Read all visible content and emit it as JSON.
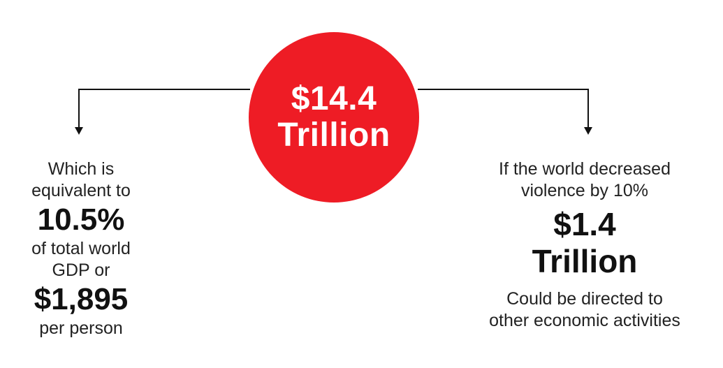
{
  "center": {
    "line1": "$14.4",
    "line2": "Trillion",
    "color": "#ee1c25"
  },
  "left": {
    "intro_line1": "Which is",
    "intro_line2": "equivalent to",
    "percent": "10.5%",
    "mid_line1": "of total world",
    "mid_line2": "GDP or",
    "per_person_value": "$1,895",
    "per_person_label": "per person"
  },
  "right": {
    "intro_line1": "If the world decreased",
    "intro_line2": "violence by 10%",
    "value_line1": "$1.4",
    "value_line2": "Trillion",
    "outro_line1": "Could be directed to",
    "outro_line2": "other economic activities"
  }
}
